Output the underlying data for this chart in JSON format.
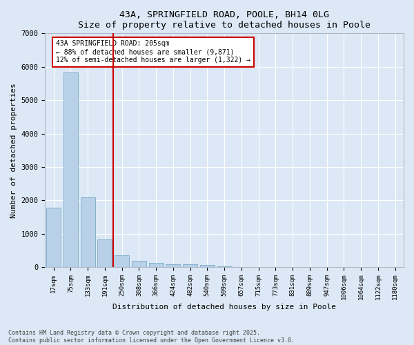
{
  "title_line1": "43A, SPRINGFIELD ROAD, POOLE, BH14 0LG",
  "title_line2": "Size of property relative to detached houses in Poole",
  "xlabel": "Distribution of detached houses by size in Poole",
  "ylabel": "Number of detached properties",
  "bar_color": "#b8d0e8",
  "bar_edge_color": "#7aaac8",
  "categories": [
    "17sqm",
    "75sqm",
    "133sqm",
    "191sqm",
    "250sqm",
    "308sqm",
    "366sqm",
    "424sqm",
    "482sqm",
    "540sqm",
    "599sqm",
    "657sqm",
    "715sqm",
    "773sqm",
    "831sqm",
    "889sqm",
    "947sqm",
    "1006sqm",
    "1064sqm",
    "1122sqm",
    "1180sqm"
  ],
  "values": [
    1780,
    5820,
    2080,
    820,
    350,
    190,
    120,
    90,
    80,
    55,
    30,
    0,
    0,
    0,
    0,
    0,
    0,
    0,
    0,
    0,
    0
  ],
  "ylim": [
    0,
    7000
  ],
  "yticks": [
    0,
    1000,
    2000,
    3000,
    4000,
    5000,
    6000,
    7000
  ],
  "annotation_line1": "43A SPRINGFIELD ROAD: 205sqm",
  "annotation_line2": "← 88% of detached houses are smaller (9,871)",
  "annotation_line3": "12% of semi-detached houses are larger (1,322) →",
  "vline_color": "#cc0000",
  "annotation_box_facecolor": "#ffffff",
  "annotation_box_edgecolor": "#cc0000",
  "footer_line1": "Contains HM Land Registry data © Crown copyright and database right 2025.",
  "footer_line2": "Contains public sector information licensed under the Open Government Licence v3.0.",
  "background_color": "#dce8f5",
  "grid_color": "#ffffff",
  "figsize": [
    6.0,
    5.0
  ],
  "dpi": 100
}
